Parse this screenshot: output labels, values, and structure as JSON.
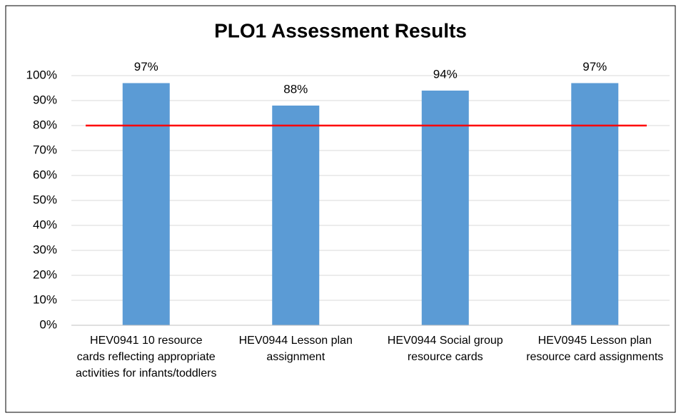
{
  "chart_data": {
    "type": "bar",
    "title": "PLO1 Assessment Results",
    "categories": [
      "HEV0941 10 resource cards reflecting appropriate activities for infants/toddlers",
      "HEV0944 Lesson plan assignment",
      "HEV0944 Social group resource cards",
      "HEV0945 Lesson plan resource card assignments"
    ],
    "values": [
      97,
      88,
      94,
      97
    ],
    "value_labels": [
      "97%",
      "88%",
      "94%",
      "97%"
    ],
    "color": "#5b9bd5",
    "ylim": [
      0,
      100
    ],
    "yticks": [
      {
        "value": 0,
        "label": "0%"
      },
      {
        "value": 10,
        "label": "10%"
      },
      {
        "value": 20,
        "label": "20%"
      },
      {
        "value": 30,
        "label": "30%"
      },
      {
        "value": 40,
        "label": "40%"
      },
      {
        "value": 50,
        "label": "50%"
      },
      {
        "value": 60,
        "label": "60%"
      },
      {
        "value": 70,
        "label": "70%"
      },
      {
        "value": 80,
        "label": "80%"
      },
      {
        "value": 90,
        "label": "90%"
      },
      {
        "value": 100,
        "label": "100%"
      }
    ],
    "grid": true,
    "reference_line": {
      "value": 80,
      "color": "#ff0000"
    }
  }
}
